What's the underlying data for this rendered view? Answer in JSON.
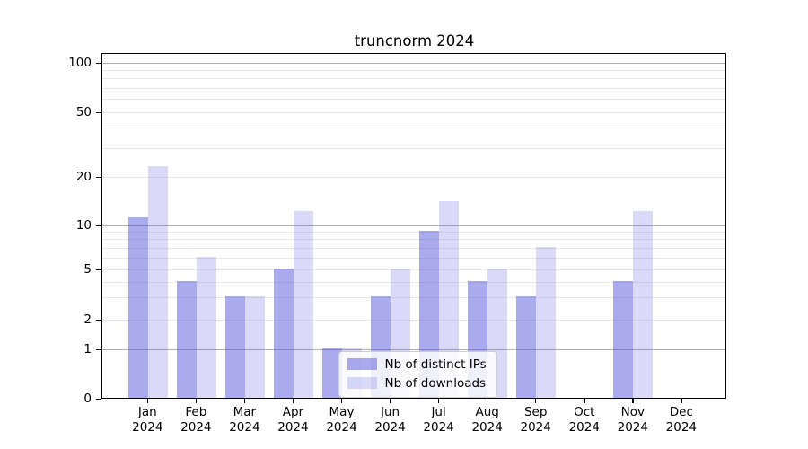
{
  "chart_data": {
    "type": "bar",
    "title": "truncnorm 2024",
    "categories": [
      "Jan",
      "Feb",
      "Mar",
      "Apr",
      "May",
      "Jun",
      "Jul",
      "Aug",
      "Sep",
      "Oct",
      "Nov",
      "Dec"
    ],
    "category_year": "2024",
    "series": [
      {
        "name": "Nb of distinct IPs",
        "color": "rgba(85,85,221,0.5)",
        "solid_color": "#aaaaee",
        "values": [
          11,
          4,
          3,
          5,
          1,
          3,
          9,
          4,
          3,
          0,
          4,
          0
        ]
      },
      {
        "name": "Nb of downloads",
        "color": "rgba(85,85,221,0.22)",
        "solid_color": "#dadaf8",
        "values": [
          23,
          6,
          3,
          12,
          1,
          5,
          14,
          5,
          7,
          0,
          12,
          0
        ]
      }
    ],
    "y_axis": {
      "scale": "log-like",
      "range": [
        0,
        100
      ],
      "tick_values": [
        0,
        1,
        2,
        5,
        10,
        20,
        50,
        100
      ],
      "tick_labels": [
        "0",
        "1",
        "2",
        "5",
        "10",
        "20",
        "50",
        "100"
      ],
      "major_gridlines": [
        1,
        10,
        100
      ],
      "minor_gridlines": [
        2,
        3,
        4,
        5,
        6,
        7,
        8,
        9,
        20,
        30,
        40,
        50,
        60,
        70,
        80,
        90
      ]
    },
    "grid": "on",
    "legend_position": "inside-lower-center"
  },
  "colors": {
    "grid_major": "#b0b0b0",
    "grid_minor": "#e8e8e8",
    "axis": "#000000",
    "legend_border": "#cccccc"
  }
}
